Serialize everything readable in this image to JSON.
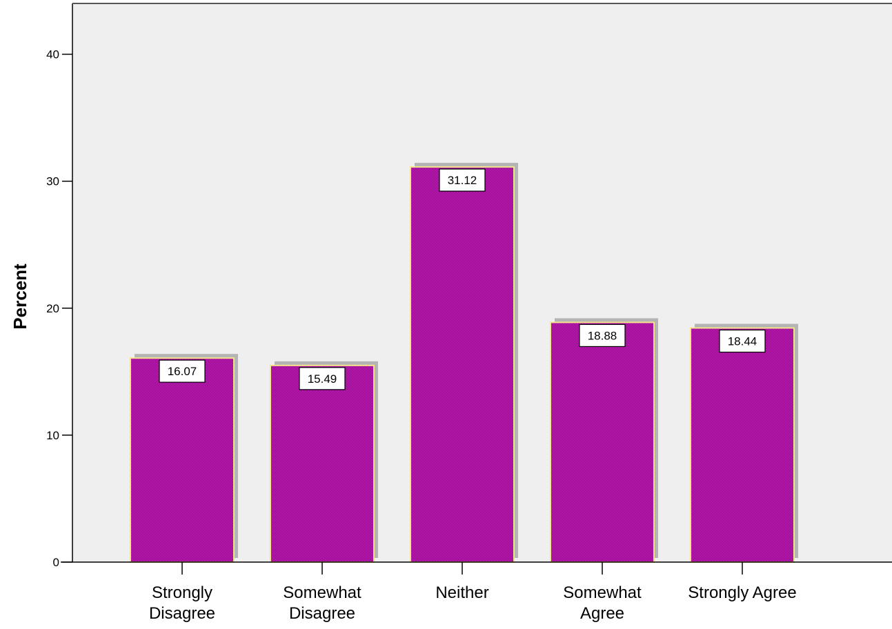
{
  "chart_data": {
    "type": "bar",
    "title": "",
    "xlabel": "",
    "ylabel": "Percent",
    "categories": [
      [
        "Strongly",
        "Disagree"
      ],
      [
        "Somewhat",
        "Disagree"
      ],
      [
        "Neither"
      ],
      [
        "Somewhat",
        "Agree"
      ],
      [
        "Strongly Agree"
      ]
    ],
    "values": [
      16.07,
      15.49,
      31.12,
      18.88,
      18.44
    ],
    "value_labels": [
      "16.07",
      "15.49",
      "31.12",
      "18.88",
      "18.44"
    ],
    "ylim": [
      0,
      44
    ],
    "yticks": [
      0,
      10,
      20,
      30,
      40
    ],
    "ytick_labels": [
      "0",
      "10",
      "20",
      "30",
      "40"
    ],
    "grid": false,
    "legend": "none",
    "colors": {
      "plot_background": "#efefef",
      "bar_fill": "#a0129a",
      "bar_pattern": "#c81ab8",
      "bar_border": "#f5e48c",
      "bar_shadow": "#b4b4b4",
      "axis": "#000000",
      "label_box": "#ffffff"
    }
  }
}
